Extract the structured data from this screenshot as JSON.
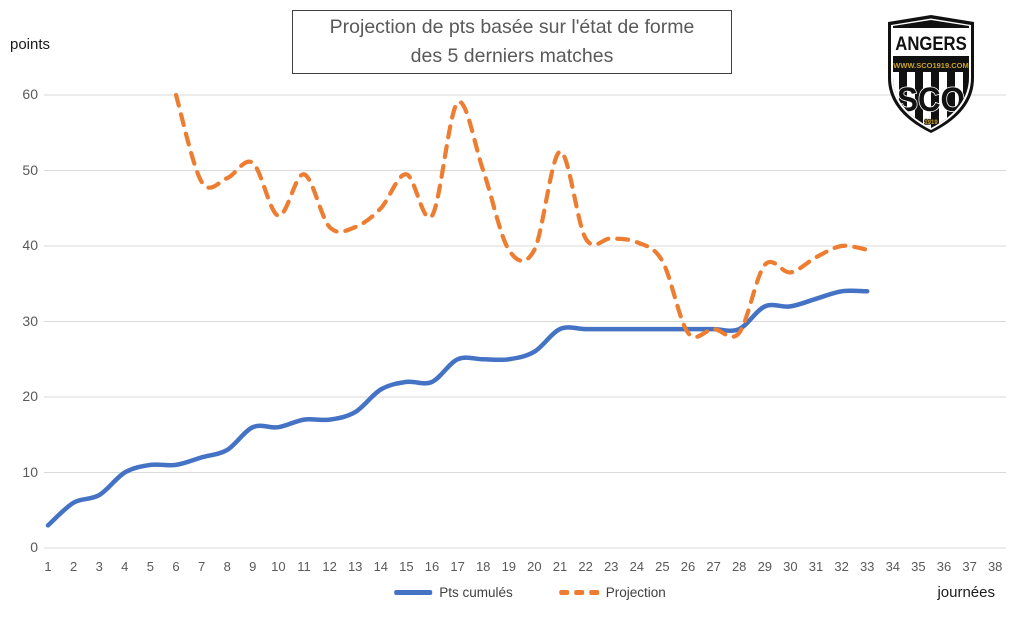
{
  "title": {
    "line1": "Projection de pts basée sur l'état de forme",
    "line2": "des 5 derniers matches"
  },
  "axes": {
    "y_title": "points",
    "x_title": "journées",
    "y_ticks": [
      0,
      10,
      20,
      30,
      40,
      50,
      60
    ],
    "x_ticks": [
      1,
      2,
      3,
      4,
      5,
      6,
      7,
      8,
      9,
      10,
      11,
      12,
      13,
      14,
      15,
      16,
      17,
      18,
      19,
      20,
      21,
      22,
      23,
      24,
      25,
      26,
      27,
      28,
      29,
      30,
      31,
      32,
      33,
      34,
      35,
      36,
      37,
      38
    ]
  },
  "legend": {
    "items": [
      {
        "label": "Pts cumulés",
        "style": "solid"
      },
      {
        "label": "Projection",
        "style": "dashed"
      }
    ]
  },
  "logo": {
    "club": "ANGERS",
    "url_text": "WWW.SCO1919.COM",
    "monogram": "SCO",
    "year": "1919"
  },
  "colors": {
    "cumul_line": "#4472C4",
    "projection_line": "#ED7D31",
    "gridline": "#D9D9D9",
    "title_text": "#595959"
  },
  "chart_data": {
    "type": "line",
    "title": "Projection de pts basée sur l'état de forme des 5 derniers matches",
    "xlabel": "journées",
    "ylabel": "points",
    "xlim": [
      1,
      38
    ],
    "ylim": [
      0,
      60
    ],
    "grid": true,
    "legend_position": "bottom",
    "series": [
      {
        "name": "Pts cumulés",
        "color": "#4472C4",
        "dashed": false,
        "x": [
          1,
          2,
          3,
          4,
          5,
          6,
          7,
          8,
          9,
          10,
          11,
          12,
          13,
          14,
          15,
          16,
          17,
          18,
          19,
          20,
          21,
          22,
          23,
          24,
          25,
          26,
          27,
          28,
          29,
          30,
          31,
          32,
          33
        ],
        "y": [
          3,
          6,
          7,
          10,
          11,
          11,
          12,
          13,
          16,
          16,
          17,
          17,
          18,
          21,
          22,
          22,
          25,
          25,
          25,
          26,
          29,
          29,
          29,
          29,
          29,
          29,
          29,
          29,
          32,
          32,
          33,
          34,
          34
        ]
      },
      {
        "name": "Projection",
        "color": "#ED7D31",
        "dashed": true,
        "x": [
          6,
          7,
          8,
          9,
          10,
          11,
          12,
          13,
          14,
          15,
          16,
          17,
          18,
          19,
          20,
          21,
          22,
          23,
          24,
          25,
          26,
          27,
          28,
          29,
          30,
          31,
          32,
          33
        ],
        "y": [
          60,
          48.5,
          49,
          51,
          44,
          49.5,
          42.5,
          42.5,
          45,
          49.5,
          44,
          59,
          50,
          39.5,
          39.5,
          52.5,
          41,
          41,
          40.5,
          38,
          28.5,
          29,
          28.5,
          37.5,
          36.5,
          38.5,
          40,
          39.5
        ]
      }
    ]
  }
}
